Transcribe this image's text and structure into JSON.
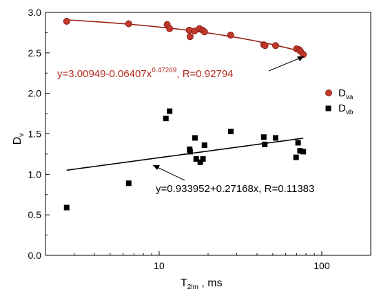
{
  "chart_data": {
    "type": "scatter",
    "x_scale": "log",
    "xlim": [
      2,
      200
    ],
    "ylim": [
      0.0,
      3.0
    ],
    "xticks": [
      10,
      100
    ],
    "xtick_labels": [
      "10",
      "100"
    ],
    "yticks": [
      0.0,
      0.5,
      1.0,
      1.5,
      2.0,
      2.5,
      3.0
    ],
    "ytick_labels": [
      "0.0",
      "0.5",
      "1.0",
      "1.5",
      "2.0",
      "2.5",
      "3.0"
    ],
    "xlabel": {
      "main": "T",
      "sub": "2lm",
      "tail": " ,    ms"
    },
    "ylabel": {
      "main": "D",
      "sub": "v"
    },
    "legend_position": "right",
    "series": [
      {
        "name_main": "D",
        "name_sub": "va",
        "color": "#c0392b",
        "marker": "circle",
        "fit": {
          "type": "power",
          "a": 3.00949,
          "b": -0.06407,
          "c": 0.47269,
          "x_range": [
            2.7,
            78
          ]
        },
        "equation": {
          "pre": "y=3.00949-0.06407x",
          "sup": "0.47269",
          "post": ", R=0.92794"
        },
        "points": [
          {
            "x": 2.7,
            "y": 2.89
          },
          {
            "x": 6.5,
            "y": 2.86
          },
          {
            "x": 11.2,
            "y": 2.85
          },
          {
            "x": 11.6,
            "y": 2.8
          },
          {
            "x": 15.3,
            "y": 2.78
          },
          {
            "x": 15.5,
            "y": 2.7
          },
          {
            "x": 16.5,
            "y": 2.77
          },
          {
            "x": 17.7,
            "y": 2.8
          },
          {
            "x": 18.5,
            "y": 2.78
          },
          {
            "x": 19.0,
            "y": 2.76
          },
          {
            "x": 27.5,
            "y": 2.72
          },
          {
            "x": 44.0,
            "y": 2.6
          },
          {
            "x": 44.8,
            "y": 2.59
          },
          {
            "x": 52.0,
            "y": 2.59
          },
          {
            "x": 70.0,
            "y": 2.55
          },
          {
            "x": 72.5,
            "y": 2.54
          },
          {
            "x": 74.0,
            "y": 2.52
          },
          {
            "x": 77.0,
            "y": 2.48
          }
        ]
      },
      {
        "name_main": "D",
        "name_sub": "vb",
        "color": "#000000",
        "marker": "square",
        "fit": {
          "type": "linear",
          "a": 0.933952,
          "b": 0.27168,
          "x_range": [
            2.7,
            77
          ]
        },
        "equation": {
          "pre": "y=0.933952+0.27168x, R=0.11383",
          "sup": "",
          "post": ""
        },
        "points": [
          {
            "x": 2.7,
            "y": 0.59
          },
          {
            "x": 6.5,
            "y": 0.89
          },
          {
            "x": 11.0,
            "y": 1.69
          },
          {
            "x": 11.6,
            "y": 1.78
          },
          {
            "x": 15.4,
            "y": 1.31
          },
          {
            "x": 15.5,
            "y": 1.28
          },
          {
            "x": 16.6,
            "y": 1.45
          },
          {
            "x": 16.9,
            "y": 1.19
          },
          {
            "x": 17.9,
            "y": 1.15
          },
          {
            "x": 18.6,
            "y": 1.19
          },
          {
            "x": 19.0,
            "y": 1.36
          },
          {
            "x": 27.6,
            "y": 1.53
          },
          {
            "x": 44.0,
            "y": 1.46
          },
          {
            "x": 44.6,
            "y": 1.37
          },
          {
            "x": 52.0,
            "y": 1.45
          },
          {
            "x": 69.5,
            "y": 1.21
          },
          {
            "x": 71.5,
            "y": 1.39
          },
          {
            "x": 73.5,
            "y": 1.29
          },
          {
            "x": 77.0,
            "y": 1.28
          }
        ]
      }
    ]
  }
}
